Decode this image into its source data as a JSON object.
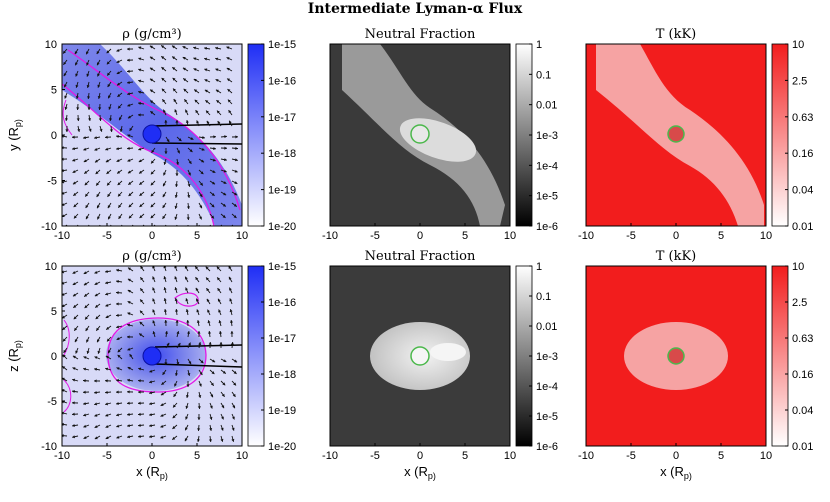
{
  "figure_title": "Intermediate Lyman-α Flux",
  "colors": {
    "blue": "#1f2ef5",
    "red": "#f21d1d",
    "magenta": "#e21ae6",
    "green": "#4cb84c"
  },
  "chart_data": {
    "type": "heatmap",
    "title": "Intermediate Lyman-α Flux",
    "x_axis": {
      "label": "x (R_p)",
      "range": [
        -10,
        10
      ],
      "ticks": [
        -10,
        -5,
        0,
        5,
        10
      ]
    },
    "rows": [
      {
        "ylabel": "y (R_p)",
        "ylim": [
          -10,
          10
        ],
        "yticks": [
          10,
          5,
          0,
          -5,
          -10
        ]
      },
      {
        "ylabel": "z (R_p)",
        "ylim": [
          -10,
          10
        ],
        "yticks": [
          10,
          5,
          0,
          -5,
          -10
        ]
      }
    ],
    "panels": [
      {
        "id": "rho",
        "title": "ρ (g/cm³)",
        "colormap": "white-blue",
        "colorbar_ticks": [
          "1e-15",
          "1e-16",
          "1e-17",
          "1e-18",
          "1e-19",
          "1e-20"
        ]
      },
      {
        "id": "neutral",
        "title": "Neutral Fraction",
        "colormap": "gray",
        "colorbar_ticks": [
          "1",
          "0.1",
          "0.01",
          "1e-3",
          "1e-4",
          "1e-5",
          "1e-6"
        ]
      },
      {
        "id": "temp",
        "title": "T (kK)",
        "colormap": "white-red",
        "colorbar_ticks": [
          "10",
          "2.5",
          "0.63",
          "0.16",
          "0.04",
          "0.01"
        ]
      }
    ],
    "planet": {
      "x": 0,
      "y": 0,
      "radius_rp": 1
    }
  }
}
